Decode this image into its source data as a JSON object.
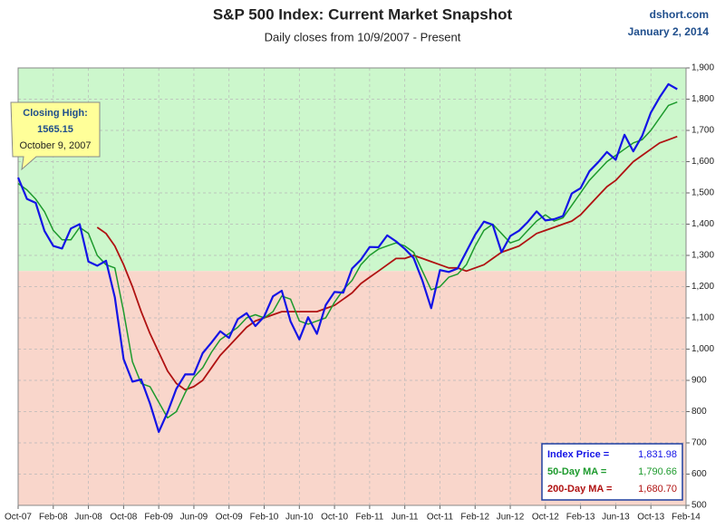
{
  "chart_data": {
    "type": "line",
    "title": "S&P 500 Index: Current Market Snapshot",
    "subtitle": "Daily closes from 10/9/2007 - Present",
    "source": "dshort.com",
    "date": "January 2, 2014",
    "annotation": {
      "lines": [
        "Closing High:",
        "1565.15",
        "October 9, 2007"
      ]
    },
    "categories": [
      "Oct-07",
      null,
      null,
      null,
      "Feb-08",
      null,
      null,
      null,
      "Jun-08",
      null,
      null,
      null,
      "Oct-08",
      null,
      null,
      null,
      "Feb-09",
      null,
      null,
      null,
      "Jun-09",
      null,
      null,
      null,
      "Oct-09",
      null,
      null,
      null,
      "Feb-10",
      null,
      null,
      null,
      "Jun-10",
      null,
      null,
      null,
      "Oct-10",
      null,
      null,
      null,
      "Feb-11",
      null,
      null,
      null,
      "Jun-11",
      null,
      null,
      null,
      "Oct-11",
      null,
      null,
      null,
      "Feb-12",
      null,
      null,
      null,
      "Jun-12",
      null,
      null,
      null,
      "Oct-12",
      null,
      null,
      null,
      "Feb-13",
      null,
      null,
      null,
      "Jun-13",
      null,
      null,
      null,
      "Oct-13",
      null,
      null,
      null,
      "Feb-14"
    ],
    "series": [
      {
        "name": "Index Price =",
        "legend_value": "1,831.98",
        "color": "#1414e6",
        "width": 2.2,
        "values": [
          1549,
          1481,
          1468,
          1378,
          1330,
          1322,
          1386,
          1400,
          1280,
          1267,
          1283,
          1166,
          968,
          896,
          903,
          826,
          735,
          798,
          873,
          919,
          919,
          987,
          1021,
          1057,
          1036,
          1096,
          1115,
          1074,
          1104,
          1169,
          1187,
          1089,
          1031,
          1102,
          1049,
          1141,
          1183,
          1181,
          1258,
          1286,
          1327,
          1326,
          1364,
          1345,
          1321,
          1292,
          1219,
          1131,
          1253,
          1247,
          1258,
          1312,
          1366,
          1408,
          1398,
          1310,
          1362,
          1379,
          1407,
          1441,
          1412,
          1416,
          1426,
          1498,
          1515,
          1569,
          1598,
          1631,
          1606,
          1686,
          1633,
          1682,
          1757,
          1806,
          1848,
          1831.98,
          null
        ]
      },
      {
        "name": "50-Day MA =",
        "legend_value": "1,790.66",
        "color": "#1d9a2d",
        "width": 1.5,
        "values": [
          1530,
          1510,
          1480,
          1440,
          1380,
          1350,
          1350,
          1390,
          1370,
          1300,
          1270,
          1260,
          1120,
          960,
          890,
          880,
          830,
          780,
          800,
          860,
          910,
          940,
          990,
          1030,
          1050,
          1070,
          1100,
          1110,
          1100,
          1120,
          1170,
          1160,
          1090,
          1080,
          1090,
          1100,
          1150,
          1190,
          1220,
          1270,
          1300,
          1320,
          1330,
          1340,
          1330,
          1310,
          1250,
          1190,
          1200,
          1230,
          1240,
          1270,
          1330,
          1380,
          1400,
          1370,
          1340,
          1350,
          1380,
          1410,
          1430,
          1410,
          1420,
          1460,
          1500,
          1540,
          1570,
          1600,
          1620,
          1640,
          1660,
          1670,
          1700,
          1740,
          1780,
          1790.66,
          null
        ]
      },
      {
        "name": "200-Day MA =",
        "legend_value": "1,680.70",
        "color": "#b01212",
        "width": 1.8,
        "values": [
          null,
          null,
          null,
          null,
          null,
          null,
          null,
          null,
          null,
          1390,
          1370,
          1330,
          1270,
          1200,
          1120,
          1050,
          990,
          930,
          890,
          870,
          880,
          900,
          940,
          980,
          1010,
          1040,
          1070,
          1090,
          1100,
          1110,
          1120,
          1120,
          1120,
          1120,
          1120,
          1130,
          1140,
          1160,
          1180,
          1210,
          1230,
          1250,
          1270,
          1290,
          1290,
          1300,
          1290,
          1280,
          1270,
          1260,
          1260,
          1250,
          1260,
          1270,
          1290,
          1310,
          1320,
          1330,
          1350,
          1370,
          1380,
          1390,
          1400,
          1410,
          1430,
          1460,
          1490,
          1520,
          1540,
          1570,
          1600,
          1620,
          1640,
          1660,
          1670,
          1680.7,
          null
        ]
      }
    ],
    "ylim": [
      500,
      1900
    ],
    "yticks": [
      500,
      600,
      700,
      800,
      900,
      {
        "value": 1000,
        "label": "1,000"
      },
      {
        "value": 1100,
        "label": "1,100"
      },
      {
        "value": 1200,
        "label": "1,200"
      },
      {
        "value": 1300,
        "label": "1,300"
      },
      {
        "value": 1400,
        "label": "1,400"
      },
      {
        "value": 1500,
        "label": "1,500"
      },
      {
        "value": 1600,
        "label": "1,600"
      },
      {
        "value": 1700,
        "label": "1,700"
      },
      {
        "value": 1800,
        "label": "1,800"
      },
      {
        "value": 1900,
        "label": "1,900"
      }
    ],
    "zones": [
      {
        "from": 1250,
        "to": 1900,
        "color": "#ccf7cc"
      },
      {
        "from": 500,
        "to": 1250,
        "color": "#f9d6cb"
      }
    ],
    "grid": true,
    "legend": "lower right"
  }
}
